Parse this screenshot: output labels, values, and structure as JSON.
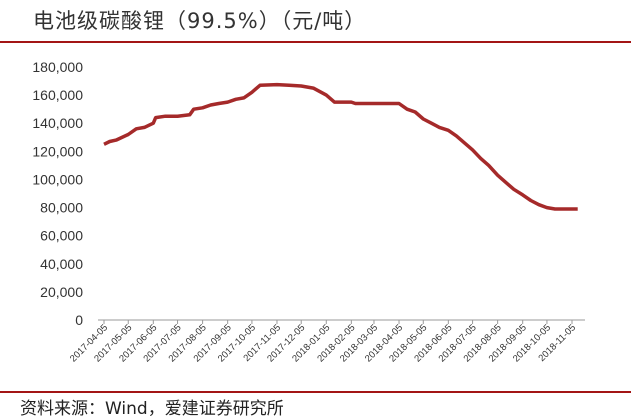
{
  "header": {
    "title": "电池级碳酸锂（99.5%）（元/吨）"
  },
  "footer": {
    "source": "资料来源：Wind，爱建证券研究所"
  },
  "colors": {
    "accent": "#a31515",
    "line": "#a52a2a"
  },
  "chart_data": {
    "type": "line",
    "title": "电池级碳酸锂（99.5%）（元/吨）",
    "xlabel": "",
    "ylabel": "",
    "ylim": [
      0,
      180000
    ],
    "yticks": [
      0,
      20000,
      40000,
      60000,
      80000,
      100000,
      120000,
      140000,
      160000,
      180000
    ],
    "ytick_labels": [
      "0",
      "20,000",
      "40,000",
      "60,000",
      "80,000",
      "100,000",
      "120,000",
      "140,000",
      "160,000",
      "180,000"
    ],
    "xtick_labels": [
      "2017-04-05",
      "2017-05-05",
      "2017-06-05",
      "2017-07-05",
      "2017-08-05",
      "2017-09-05",
      "2017-10-05",
      "2017-11-05",
      "2017-12-05",
      "2018-01-05",
      "2018-02-05",
      "2018-03-05",
      "2018-04-05",
      "2018-05-05",
      "2018-06-05",
      "2018-07-05",
      "2018-08-05",
      "2018-09-05",
      "2018-10-05",
      "2018-11-05"
    ],
    "grid": false,
    "legend": "none",
    "series": [
      {
        "x": [
          "2017-04-05",
          "2017-04-12",
          "2017-04-20",
          "2017-05-05",
          "2017-05-15",
          "2017-05-25",
          "2017-06-05",
          "2017-06-08",
          "2017-06-20",
          "2017-06-25",
          "2017-07-05",
          "2017-07-20",
          "2017-07-25",
          "2017-08-05",
          "2017-08-15",
          "2017-08-25",
          "2017-09-05",
          "2017-09-15",
          "2017-09-25",
          "2017-10-05",
          "2017-10-15",
          "2017-11-05",
          "2017-11-20",
          "2017-12-05",
          "2017-12-20",
          "2018-01-05",
          "2018-01-15",
          "2018-02-05",
          "2018-02-10",
          "2018-03-05",
          "2018-04-05",
          "2018-04-15",
          "2018-04-25",
          "2018-05-05",
          "2018-05-15",
          "2018-05-25",
          "2018-06-05",
          "2018-06-15",
          "2018-06-25",
          "2018-07-05",
          "2018-07-15",
          "2018-07-25",
          "2018-08-05",
          "2018-08-15",
          "2018-08-25",
          "2018-09-05",
          "2018-09-15",
          "2018-09-25",
          "2018-10-05",
          "2018-10-15",
          "2018-10-25",
          "2018-11-05",
          "2018-11-12"
        ],
        "values": [
          125000,
          127000,
          128000,
          132000,
          136000,
          137000,
          140000,
          144000,
          145000,
          145000,
          145000,
          146000,
          150000,
          151000,
          153000,
          154000,
          155000,
          157000,
          158000,
          162000,
          167000,
          167500,
          167000,
          166500,
          165000,
          160000,
          155000,
          155000,
          154000,
          154000,
          154000,
          150000,
          148000,
          143000,
          140000,
          137000,
          135000,
          131000,
          126000,
          121000,
          115000,
          110000,
          103000,
          98000,
          93000,
          89000,
          85000,
          82000,
          80000,
          79000,
          79000,
          79000,
          79000
        ]
      }
    ]
  }
}
